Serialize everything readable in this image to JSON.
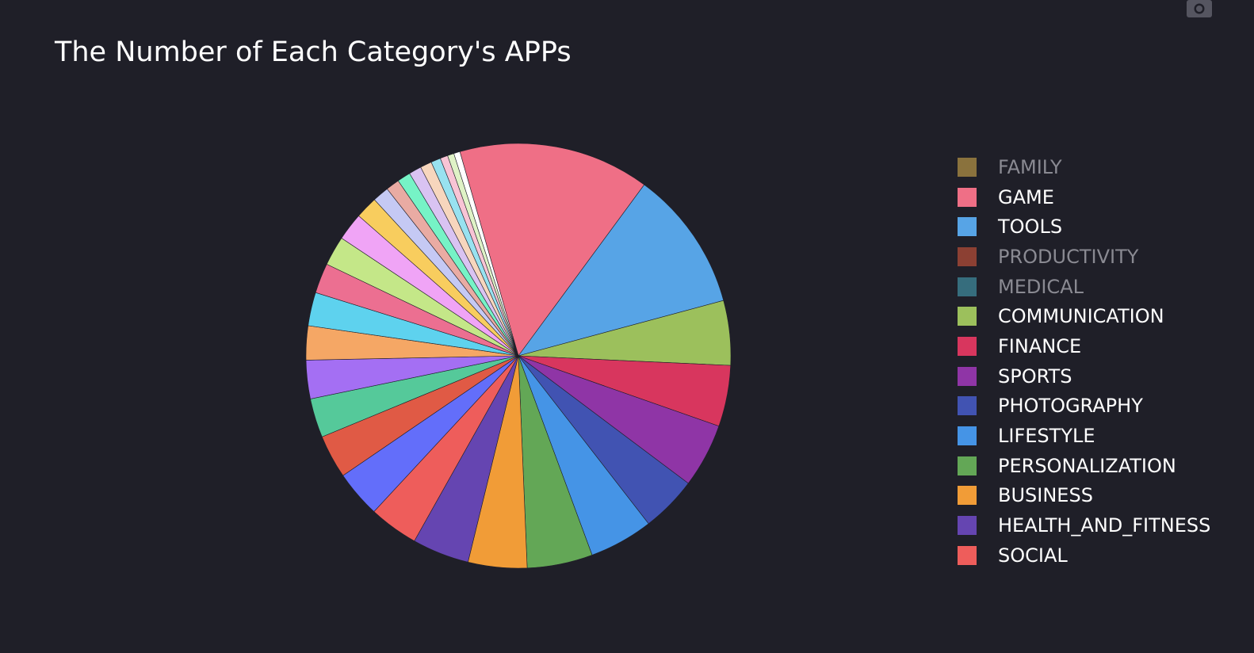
{
  "title": "The Number of Each Category's APPs",
  "icons": {
    "toolbar": "camera-icon"
  },
  "chart_data": {
    "type": "pie",
    "title": "The Number of Each Category's APPs",
    "direction": "clockwise",
    "start_angle_deg": 254,
    "legend_position": "right",
    "colors_note": "hidden legend entries are not drawn in the pie",
    "slices": [
      {
        "label": "GAME",
        "value": 1144,
        "color": "#ef6f86",
        "visible": true,
        "in_legend": true
      },
      {
        "label": "TOOLS",
        "value": 843,
        "color": "#57a4e6",
        "visible": true,
        "in_legend": true
      },
      {
        "label": "COMMUNICATION",
        "value": 387,
        "color": "#9cc05c",
        "visible": true,
        "in_legend": true
      },
      {
        "label": "FINANCE",
        "value": 366,
        "color": "#d8365e",
        "visible": true,
        "in_legend": true
      },
      {
        "label": "SPORTS",
        "value": 384,
        "color": "#8f35a6",
        "visible": true,
        "in_legend": true
      },
      {
        "label": "PHOTOGRAPHY",
        "value": 335,
        "color": "#4153b2",
        "visible": true,
        "in_legend": true
      },
      {
        "label": "LIFESTYLE",
        "value": 382,
        "color": "#4594e6",
        "visible": true,
        "in_legend": true
      },
      {
        "label": "PERSONALIZATION",
        "value": 392,
        "color": "#63a756",
        "visible": true,
        "in_legend": true
      },
      {
        "label": "BUSINESS",
        "value": 352,
        "color": "#f19c37",
        "visible": true,
        "in_legend": true
      },
      {
        "label": "HEALTH_AND_FITNESS",
        "value": 341,
        "color": "#6545b1",
        "visible": true,
        "in_legend": true
      },
      {
        "label": "SOCIAL",
        "value": 295,
        "color": "#ee5d5b",
        "visible": true,
        "in_legend": true
      },
      {
        "label": "",
        "value": 281,
        "color": "#636efa",
        "visible": true,
        "in_legend": false
      },
      {
        "label": "",
        "value": 260,
        "color": "#e05a45",
        "visible": true,
        "in_legend": false
      },
      {
        "label": "",
        "value": 234,
        "color": "#55c99a",
        "visible": true,
        "in_legend": false
      },
      {
        "label": "",
        "value": 231,
        "color": "#a46ff3",
        "visible": true,
        "in_legend": false
      },
      {
        "label": "",
        "value": 204,
        "color": "#f5a765",
        "visible": true,
        "in_legend": false
      },
      {
        "label": "",
        "value": 200,
        "color": "#5ed2ee",
        "visible": true,
        "in_legend": false
      },
      {
        "label": "",
        "value": 180,
        "color": "#ec6f91",
        "visible": true,
        "in_legend": false
      },
      {
        "label": "",
        "value": 177,
        "color": "#c4e788",
        "visible": true,
        "in_legend": false
      },
      {
        "label": "",
        "value": 166,
        "color": "#f0a4f6",
        "visible": true,
        "in_legend": false
      },
      {
        "label": "",
        "value": 133,
        "color": "#f8cd5e",
        "visible": true,
        "in_legend": false
      },
      {
        "label": "",
        "value": 98,
        "color": "#c5c9f4",
        "visible": true,
        "in_legend": false
      },
      {
        "label": "",
        "value": 81,
        "color": "#e9aba3",
        "visible": true,
        "in_legend": false
      },
      {
        "label": "",
        "value": 80,
        "color": "#76f3c6",
        "visible": true,
        "in_legend": false
      },
      {
        "label": "",
        "value": 75,
        "color": "#d9c3f2",
        "visible": true,
        "in_legend": false
      },
      {
        "label": "",
        "value": 69,
        "color": "#f7d6bd",
        "visible": true,
        "in_legend": false
      },
      {
        "label": "",
        "value": 58,
        "color": "#98e2f0",
        "visible": true,
        "in_legend": false
      },
      {
        "label": "",
        "value": 46,
        "color": "#f8c4d5",
        "visible": true,
        "in_legend": false
      },
      {
        "label": "",
        "value": 39,
        "color": "#dff2c6",
        "visible": true,
        "in_legend": false
      },
      {
        "label": "",
        "value": 37,
        "color": "#ffffff",
        "visible": true,
        "in_legend": false
      },
      {
        "label": "FAMILY",
        "value": 0,
        "color": "#8a723d",
        "visible": false,
        "in_legend": true
      },
      {
        "label": "PRODUCTIVITY",
        "value": 0,
        "color": "#8c4033",
        "visible": false,
        "in_legend": true
      },
      {
        "label": "MEDICAL",
        "value": 0,
        "color": "#366d7d",
        "visible": false,
        "in_legend": true
      }
    ]
  },
  "legend": [
    {
      "label": "FAMILY",
      "color": "#8a723d",
      "hidden": true
    },
    {
      "label": "GAME",
      "color": "#ef6f86",
      "hidden": false
    },
    {
      "label": "TOOLS",
      "color": "#57a4e6",
      "hidden": false
    },
    {
      "label": "PRODUCTIVITY",
      "color": "#8c4033",
      "hidden": true
    },
    {
      "label": "MEDICAL",
      "color": "#366d7d",
      "hidden": true
    },
    {
      "label": "COMMUNICATION",
      "color": "#9cc05c",
      "hidden": false
    },
    {
      "label": "FINANCE",
      "color": "#d8365e",
      "hidden": false
    },
    {
      "label": "SPORTS",
      "color": "#8f35a6",
      "hidden": false
    },
    {
      "label": "PHOTOGRAPHY",
      "color": "#4153b2",
      "hidden": false
    },
    {
      "label": "LIFESTYLE",
      "color": "#4594e6",
      "hidden": false
    },
    {
      "label": "PERSONALIZATION",
      "color": "#63a756",
      "hidden": false
    },
    {
      "label": "BUSINESS",
      "color": "#f19c37",
      "hidden": false
    },
    {
      "label": "HEALTH_AND_FITNESS",
      "color": "#6545b1",
      "hidden": false
    },
    {
      "label": "SOCIAL",
      "color": "#ee5d5b",
      "hidden": false
    }
  ]
}
